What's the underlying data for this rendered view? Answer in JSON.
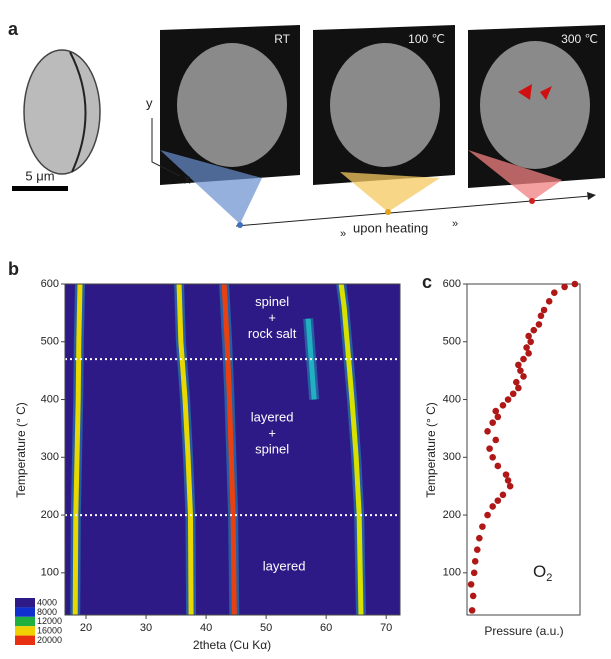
{
  "panel_a": {
    "label": "a",
    "scale_bar": "5 μm",
    "axis_x": "x",
    "axis_y": "y",
    "frames": [
      "RT",
      "100 ℃",
      "300 ℃"
    ],
    "caption": "upon heating"
  },
  "panel_b": {
    "label": "b",
    "chart_data": {
      "type": "heatmap",
      "x_label": "2theta (Cu Kα)",
      "y_label": "Temperature (° C)",
      "xlim": [
        16.5,
        72.3
      ],
      "ylim": [
        27,
        600
      ],
      "xticks": [
        20,
        30,
        40,
        50,
        60,
        70
      ],
      "yticks": [
        100,
        200,
        300,
        400,
        500,
        600
      ],
      "background": "#2e1a87",
      "dividers": [
        470,
        200
      ],
      "ridges": [
        {
          "x": [
            18.2,
            18.3,
            18.5,
            18.7,
            18.8,
            19.0
          ],
          "y": [
            27,
            200,
            300,
            400,
            500,
            600
          ],
          "color": "#e8d800"
        },
        {
          "x": [
            37.5,
            37.4,
            37.0,
            36.5,
            35.8,
            35.5
          ],
          "y": [
            27,
            200,
            300,
            400,
            500,
            600
          ],
          "color": "#e8d800"
        },
        {
          "x": [
            44.7,
            44.5,
            44.2,
            43.9,
            43.5,
            43.0
          ],
          "y": [
            27,
            200,
            300,
            400,
            500,
            600
          ],
          "color": "#e84010"
        },
        {
          "x": [
            65.8,
            65.5,
            65.0,
            64.3,
            63.5,
            63.0,
            62.5
          ],
          "y": [
            27,
            200,
            300,
            400,
            500,
            560,
            600
          ],
          "color": "#d8e000"
        },
        {
          "x": [
            58.0,
            57.5,
            57.0
          ],
          "y": [
            400,
            470,
            540
          ],
          "color": "#20b0c0"
        }
      ],
      "regions": [
        {
          "lines": [
            "spinel",
            "+",
            "rock salt"
          ],
          "at": [
            51,
            540
          ]
        },
        {
          "lines": [
            "layered",
            "+",
            "spinel"
          ],
          "at": [
            51,
            340
          ]
        },
        {
          "lines": [
            "layered"
          ],
          "at": [
            53,
            110
          ]
        }
      ],
      "colorbar": {
        "values": [
          4000,
          8000,
          12000,
          16000,
          20000
        ],
        "colors": [
          "#2e1a87",
          "#1030d0",
          "#20b040",
          "#f0d000",
          "#e83010"
        ]
      }
    }
  },
  "panel_c": {
    "label": "c",
    "chart_data": {
      "type": "scatter",
      "x_label": "Pressure (a.u.)",
      "y_label": "Temperature (° C)",
      "species": "O",
      "subscript": "2",
      "xlim": [
        0,
        1.1
      ],
      "ylim": [
        27,
        600
      ],
      "yticks": [
        100,
        200,
        300,
        400,
        500,
        600
      ],
      "color": "#b01818",
      "x": [
        0.05,
        0.06,
        0.04,
        0.07,
        0.08,
        0.1,
        0.12,
        0.15,
        0.2,
        0.25,
        0.3,
        0.35,
        0.42,
        0.4,
        0.38,
        0.3,
        0.25,
        0.22,
        0.28,
        0.2,
        0.25,
        0.3,
        0.28,
        0.35,
        0.4,
        0.45,
        0.5,
        0.48,
        0.55,
        0.52,
        0.5,
        0.55,
        0.6,
        0.58,
        0.62,
        0.6,
        0.65,
        0.7,
        0.72,
        0.75,
        0.8,
        0.85,
        0.95,
        1.05
      ],
      "y": [
        35,
        60,
        80,
        100,
        120,
        140,
        160,
        180,
        200,
        215,
        225,
        235,
        250,
        260,
        270,
        285,
        300,
        315,
        330,
        345,
        360,
        370,
        380,
        390,
        400,
        410,
        420,
        430,
        440,
        450,
        460,
        470,
        480,
        490,
        500,
        510,
        520,
        530,
        545,
        555,
        570,
        585,
        595,
        600
      ]
    }
  }
}
